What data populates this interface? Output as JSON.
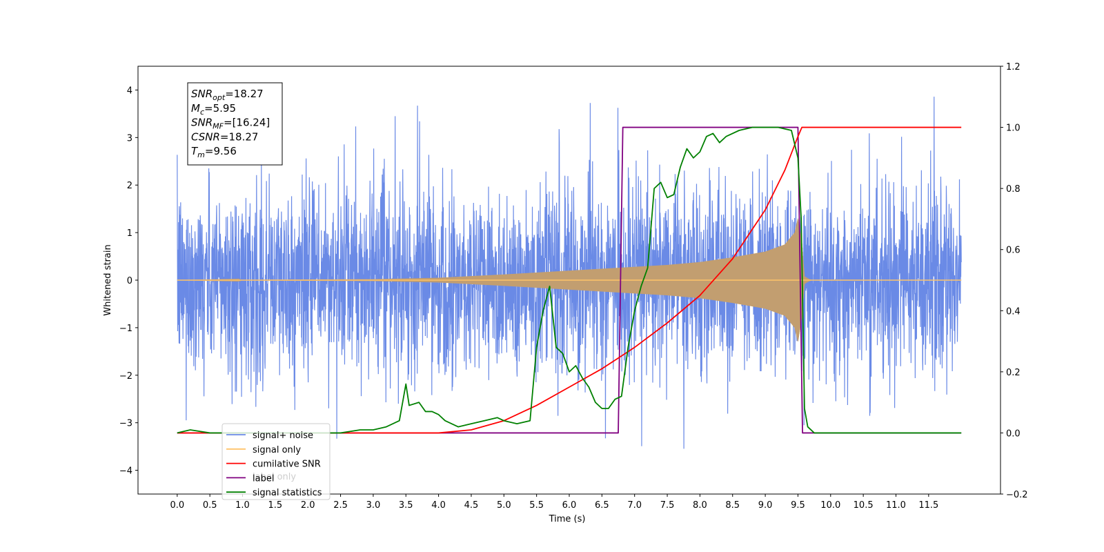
{
  "chart_data": {
    "type": "line",
    "xlabel": "Time (s)",
    "ylabel": "Whitened strain",
    "xlim": [
      -0.6,
      12.6
    ],
    "ylim": [
      -4.5,
      4.5
    ],
    "y2lim": [
      -0.2,
      1.2
    ],
    "x_ticks": [
      "0.0",
      "0.5",
      "1.0",
      "1.5",
      "2.0",
      "2.5",
      "3.0",
      "3.5",
      "4.0",
      "4.5",
      "5.0",
      "5.5",
      "6.0",
      "6.5",
      "7.0",
      "7.5",
      "8.0",
      "8.5",
      "9.0",
      "9.5",
      "10.0",
      "10.5",
      "11.0",
      "11.5"
    ],
    "y_ticks": [
      "4",
      "3",
      "2",
      "1",
      "0",
      "−1",
      "−2",
      "−3",
      "−4"
    ],
    "y2_ticks": [
      "1.2",
      "1.0",
      "0.8",
      "0.6",
      "0.4",
      "0.2",
      "0.0",
      "−0.2"
    ],
    "info_box": [
      {
        "sym": "SNR",
        "sub": "opt",
        "value": "=18.27"
      },
      {
        "sym": "M",
        "sub": "c",
        "value": "=5.95"
      },
      {
        "sym": "SNR",
        "sub": "MF",
        "value": "=[16.24]"
      },
      {
        "sym": "CSNR",
        "sub": "",
        "value": "=18.27"
      },
      {
        "sym": "T",
        "sub": "m",
        "value": "=9.56"
      }
    ],
    "legend": {
      "placement": "lower-left",
      "entries": [
        {
          "label": "signal+ noise",
          "color": "#6a8ae6"
        },
        {
          "label": "signal only",
          "color": "#ffc469"
        },
        {
          "label": "cumilative SNR",
          "color": "#ff0000"
        },
        {
          "label": "label",
          "color": "#800080"
        },
        {
          "label": "signal statistics",
          "color": "#008000"
        }
      ],
      "hidden_entry_text": "label only"
    },
    "series": [
      {
        "name": "signal+ noise",
        "axis": "left",
        "color": "#6a8ae6",
        "x_range": [
          0.0,
          12.0
        ],
        "envelope": "random noise, amplitude ±2.5 with spikes to about ±4"
      },
      {
        "name": "signal only",
        "axis": "left",
        "color": "#c29e70",
        "x_range": [
          0.0,
          12.0
        ],
        "envelope_points": [
          [
            0.0,
            0.0
          ],
          [
            3.0,
            0.02
          ],
          [
            4.0,
            0.05
          ],
          [
            5.0,
            0.12
          ],
          [
            6.0,
            0.2
          ],
          [
            7.0,
            0.28
          ],
          [
            7.5,
            0.32
          ],
          [
            8.0,
            0.38
          ],
          [
            8.5,
            0.48
          ],
          [
            9.0,
            0.6
          ],
          [
            9.3,
            0.75
          ],
          [
            9.45,
            1.0
          ],
          [
            9.5,
            1.3
          ],
          [
            9.56,
            0.8
          ],
          [
            9.6,
            0.08
          ],
          [
            9.7,
            0.0
          ],
          [
            12.0,
            0.0
          ]
        ]
      },
      {
        "name": "cumilative SNR",
        "axis": "right",
        "color": "#ff0000",
        "x": [
          0.0,
          4.0,
          4.5,
          5.0,
          5.5,
          6.0,
          6.5,
          7.0,
          7.5,
          8.0,
          8.5,
          9.0,
          9.3,
          9.5,
          9.56,
          12.0
        ],
        "y": [
          0.0,
          0.0,
          0.01,
          0.04,
          0.09,
          0.15,
          0.21,
          0.28,
          0.36,
          0.45,
          0.57,
          0.73,
          0.86,
          0.97,
          1.0,
          1.0
        ]
      },
      {
        "name": "label",
        "axis": "right",
        "color": "#800080",
        "x": [
          0.0,
          6.75,
          6.82,
          9.5,
          9.57,
          12.0
        ],
        "y": [
          0.0,
          0.0,
          1.0,
          1.0,
          0.0,
          0.0
        ]
      },
      {
        "name": "signal statistics",
        "axis": "right",
        "color": "#008000",
        "x": [
          0.0,
          0.2,
          0.5,
          1.0,
          1.5,
          2.0,
          2.5,
          2.8,
          3.0,
          3.2,
          3.4,
          3.5,
          3.55,
          3.7,
          3.8,
          3.9,
          4.0,
          4.1,
          4.3,
          4.5,
          4.7,
          4.9,
          5.0,
          5.2,
          5.4,
          5.5,
          5.6,
          5.7,
          5.75,
          5.8,
          5.9,
          6.0,
          6.1,
          6.2,
          6.3,
          6.4,
          6.5,
          6.6,
          6.7,
          6.8,
          6.9,
          7.0,
          7.1,
          7.2,
          7.3,
          7.4,
          7.5,
          7.6,
          7.7,
          7.8,
          7.9,
          8.0,
          8.1,
          8.2,
          8.3,
          8.4,
          8.6,
          8.8,
          9.0,
          9.2,
          9.4,
          9.5,
          9.55,
          9.6,
          9.65,
          9.75,
          12.0
        ],
        "y": [
          0.0,
          0.01,
          0.0,
          0.0,
          0.0,
          0.0,
          0.0,
          0.01,
          0.01,
          0.02,
          0.04,
          0.16,
          0.09,
          0.1,
          0.07,
          0.07,
          0.06,
          0.04,
          0.02,
          0.03,
          0.04,
          0.05,
          0.04,
          0.03,
          0.04,
          0.28,
          0.4,
          0.48,
          0.38,
          0.28,
          0.26,
          0.2,
          0.22,
          0.18,
          0.15,
          0.1,
          0.08,
          0.08,
          0.11,
          0.12,
          0.28,
          0.4,
          0.48,
          0.54,
          0.8,
          0.82,
          0.77,
          0.78,
          0.87,
          0.93,
          0.9,
          0.92,
          0.97,
          0.98,
          0.95,
          0.97,
          0.99,
          1.0,
          1.0,
          1.0,
          0.99,
          0.9,
          0.7,
          0.08,
          0.02,
          0.0,
          0.0
        ]
      }
    ]
  }
}
